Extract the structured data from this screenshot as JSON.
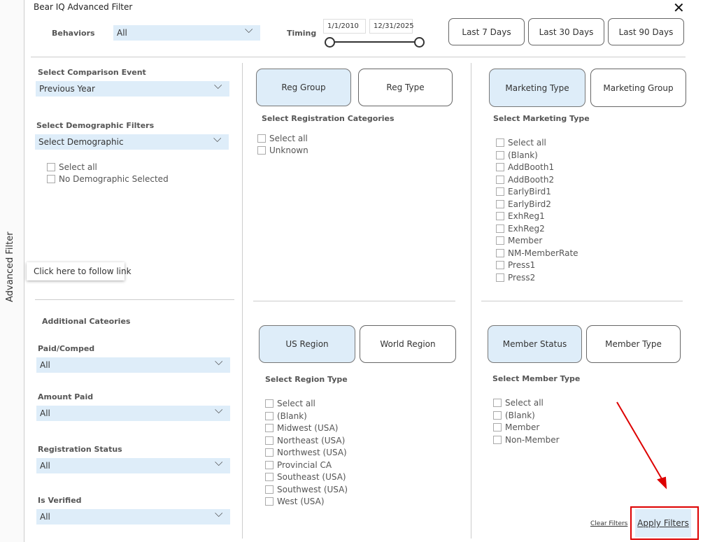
{
  "sidebar_label": "Advanced Filter",
  "tooltip": "Click here to follow link",
  "header": {
    "title": "Bear IQ Advanced Filter",
    "close": "✕",
    "behaviors_label": "Behaviors",
    "behaviors_value": "All",
    "timing_label": "Timing",
    "start_date": "1/1/2010",
    "end_date": "12/31/2025",
    "buttons": [
      "Last 7 Days",
      "Last 30 Days",
      "Last 90 Days"
    ]
  },
  "left": {
    "comparison_label": "Select Comparison Event",
    "comparison_value": "Previous Year",
    "demographic_label": "Select Demographic Filters",
    "demographic_value": "Select Demographic",
    "demographic_options": [
      "Select all",
      "No Demographic Selected"
    ],
    "additional_title": "Additional Cateories",
    "dropdowns": [
      {
        "label": "Paid/Comped",
        "value": "All"
      },
      {
        "label": "Amount Paid",
        "value": "All"
      },
      {
        "label": "Registration Status",
        "value": "All"
      },
      {
        "label": "Is Verified",
        "value": "All"
      }
    ]
  },
  "panels": [
    {
      "tabs": [
        "Reg Group",
        "Reg Type"
      ],
      "heading": "Select Registration Categories",
      "options": [
        "Select all",
        "Unknown"
      ]
    },
    {
      "tabs": [
        "Marketing Type",
        "Marketing Group"
      ],
      "heading": "Select Marketing Type",
      "options": [
        "Select all",
        "(Blank)",
        "AddBooth1",
        "AddBooth2",
        "EarlyBird1",
        "EarlyBird2",
        "ExhReg1",
        "ExhReg2",
        "Member",
        "NM-MemberRate",
        "Press1",
        "Press2"
      ]
    },
    {
      "tabs": [
        "US Region",
        "World Region"
      ],
      "heading": "Select Region Type",
      "options": [
        "Select all",
        "(Blank)",
        "Midwest (USA)",
        "Northeast (USA)",
        "Northwest (USA)",
        "Provincial CA",
        "Southeast (USA)",
        "Southwest (USA)",
        "West (USA)"
      ]
    },
    {
      "tabs": [
        "Member Status",
        "Member Type"
      ],
      "heading": "Select Member Type",
      "options": [
        "Select all",
        "(Blank)",
        "Member",
        "Non-Member"
      ]
    }
  ],
  "footer": {
    "clear": "Clear Filters",
    "apply": "Apply Filters"
  }
}
